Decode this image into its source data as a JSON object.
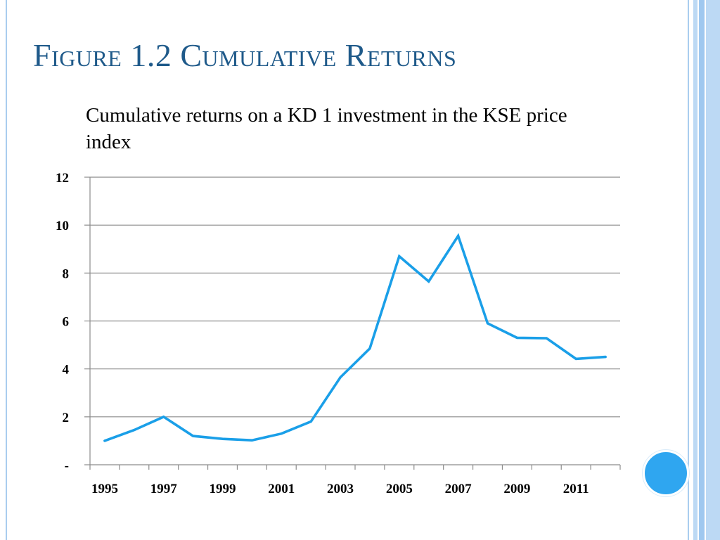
{
  "slide": {
    "title": "Figure 1.2 Cumulative Returns"
  },
  "colors": {
    "title": "#1f5a8a",
    "line": "#1a9fe8",
    "grid": "#8c8c8c",
    "accent_circle": "#2fa6f0",
    "stripes": "#bcd9f4"
  },
  "chart_data": {
    "type": "line",
    "title": "Cumulative returns on a KD 1 investment in the KSE price index",
    "xlabel": "",
    "ylabel": "",
    "ylim": [
      0,
      12
    ],
    "yticks": [
      {
        "value": 0,
        "label": "-"
      },
      {
        "value": 2,
        "label": "2"
      },
      {
        "value": 4,
        "label": "4"
      },
      {
        "value": 6,
        "label": "6"
      },
      {
        "value": 8,
        "label": "8"
      },
      {
        "value": 10,
        "label": "10"
      },
      {
        "value": 12,
        "label": "12"
      }
    ],
    "xticks": [
      "1995",
      "1997",
      "1999",
      "2001",
      "2003",
      "2005",
      "2007",
      "2009",
      "2011"
    ],
    "grid": true,
    "legend": "none",
    "series": [
      {
        "x": [
          1995,
          1996,
          1997,
          1998,
          1999,
          2000,
          2001,
          2002,
          2003,
          2004,
          2005,
          2006,
          2007,
          2008,
          2009,
          2010,
          2011,
          2012
        ],
        "values": [
          1.0,
          1.45,
          2.0,
          1.2,
          1.08,
          1.02,
          1.3,
          1.8,
          3.65,
          4.85,
          8.7,
          7.65,
          9.55,
          5.9,
          5.3,
          5.28,
          4.42,
          4.5
        ]
      }
    ]
  }
}
